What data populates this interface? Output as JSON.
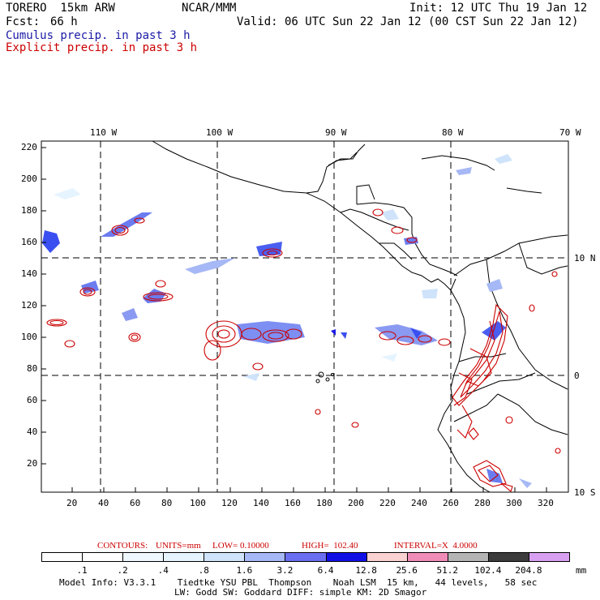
{
  "header": {
    "model": "TORERO  15km ARW",
    "center": "NCAR/MMM",
    "init": "Init: 12 UTC Thu 19 Jan 12",
    "fcst_label": "Fcst:",
    "fcst_value": "66 h",
    "valid": "Valid: 06 UTC Sun 22 Jan 12 (00 CST Sun 22 Jan 12)",
    "legend_cumulus": "Cumulus precip. in past 3 h",
    "legend_explicit": "Explicit precip. in past 3 h"
  },
  "map": {
    "top_lon_labels": [
      "110 W",
      "100 W",
      "90 W",
      "80 W",
      "70 W"
    ],
    "right_lat_labels": [
      "10 N",
      "0",
      "10 S"
    ],
    "left_y_ticks": [
      "220",
      "200",
      "180",
      "160",
      "140",
      "120",
      "100",
      "80",
      "60",
      "40",
      "20"
    ],
    "bottom_x_ticks": [
      "20",
      "40",
      "60",
      "80",
      "100",
      "120",
      "140",
      "160",
      "180",
      "200",
      "220",
      "240",
      "260",
      "280",
      "300",
      "320"
    ]
  },
  "contours": {
    "label": "CONTOURS:",
    "units": "UNITS=mm",
    "low": "LOW= 0.10000",
    "high": "HIGH=  102.40",
    "interval": "INTERVAL=X  4.0000"
  },
  "colorbar": {
    "unit": "mm",
    "labels": [
      ".1",
      ".2",
      ".4",
      ".8",
      "1.6",
      "3.2",
      "6.4",
      "12.8",
      "25.6",
      "51.2",
      "102.4",
      "204.8"
    ],
    "colors": [
      "#ffffff",
      "#ffffff",
      "#f0f8ff",
      "#e6f4ff",
      "#cfe3fb",
      "#a6b8f5",
      "#6a6ef0",
      "#1010e6",
      "#fbd2d2",
      "#f08cb8",
      "#b4b4b4",
      "#3c3c3c",
      "#d8a0f0"
    ]
  },
  "footer": {
    "line1": "Model Info: V3.3.1    Tiedtke YSU PBL  Thompson    Noah LSM  15 km,   44 levels,   58 sec",
    "line2": "LW: Godd SW: Goddard DIFF: simple KM: 2D Smagor"
  }
}
